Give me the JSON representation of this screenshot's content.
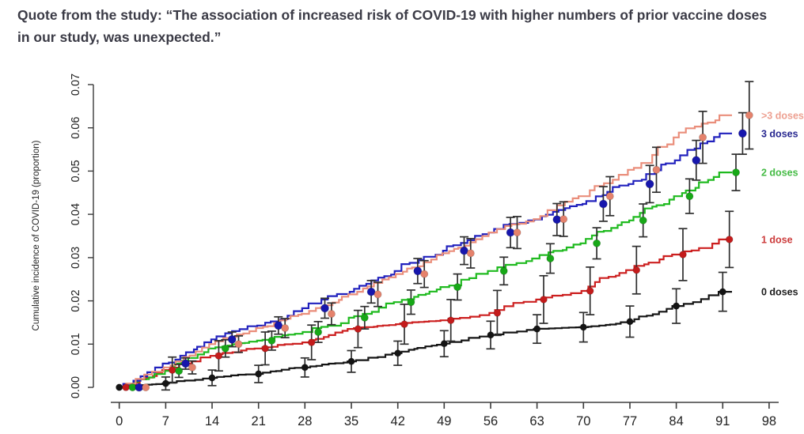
{
  "quote": {
    "text": "Quote from the study: “The association of increased risk of COVID-19 with higher numbers of prior vaccine doses in our study, was unexpected.”"
  },
  "chart_data": {
    "type": "line",
    "subtype": "step-cumulative-incidence-with-error-bars",
    "title": "",
    "xlabel": "",
    "ylabel": "Cumulative incidence of COVID-19 (proportion)",
    "xlim": [
      0,
      98
    ],
    "ylim": [
      0,
      0.07
    ],
    "x_ticks": [
      0,
      7,
      14,
      21,
      28,
      35,
      42,
      49,
      56,
      63,
      70,
      77,
      84,
      91,
      98
    ],
    "y_ticks": [
      "0.00",
      "0.01",
      "0.02",
      "0.03",
      "0.04",
      "0.05",
      "0.06",
      "0.07"
    ],
    "grid": false,
    "legend_position": "right, aligned to final value of each curve",
    "point_days": [
      0,
      7,
      14,
      21,
      28,
      35,
      42,
      49,
      56,
      63,
      70,
      77,
      84,
      91
    ],
    "series": [
      {
        "name": "0 doses",
        "label": "0 doses",
        "color": "#141414",
        "dot_color": "#141414",
        "legend_color": "#1a1a1a",
        "offset_days": 0,
        "values": [
          0,
          0.0009,
          0.0022,
          0.0031,
          0.0046,
          0.006,
          0.0079,
          0.0101,
          0.0121,
          0.0135,
          0.0139,
          0.0152,
          0.0188,
          0.0221
        ],
        "ci": [
          0,
          0.0015,
          0.0018,
          0.002,
          0.0022,
          0.0025,
          0.0028,
          0.003,
          0.0032,
          0.0033,
          0.0034,
          0.0036,
          0.004,
          0.0045
        ]
      },
      {
        "name": "1 dose",
        "label": "1 dose",
        "color": "#cc1f1f",
        "dot_color": "#c41b1b",
        "legend_color": "#cc3b3b",
        "offset_days": 1,
        "values": [
          0,
          0.004,
          0.0073,
          0.009,
          0.0104,
          0.0135,
          0.0146,
          0.0155,
          0.0172,
          0.0203,
          0.0223,
          0.0271,
          0.0307,
          0.0342
        ],
        "ci": [
          0,
          0.003,
          0.0035,
          0.0038,
          0.004,
          0.0043,
          0.0046,
          0.0048,
          0.0052,
          0.0055,
          0.0055,
          0.0055,
          0.006,
          0.0065
        ]
      },
      {
        "name": "2 doses",
        "label": "2 doses",
        "color": "#1fba1f",
        "dot_color": "#17a817",
        "legend_color": "#44bb44",
        "offset_days": 2,
        "values": [
          0,
          0.0038,
          0.009,
          0.0108,
          0.0128,
          0.0161,
          0.0197,
          0.0232,
          0.0269,
          0.0298,
          0.0333,
          0.0386,
          0.0442,
          0.0497
        ],
        "ci": [
          0,
          0.0015,
          0.002,
          0.0022,
          0.0024,
          0.0026,
          0.0028,
          0.003,
          0.0032,
          0.0034,
          0.0036,
          0.0038,
          0.004,
          0.0042
        ]
      },
      {
        "name": "3 doses",
        "label": "3 doses",
        "color": "#2121bd",
        "dot_color": "#1616ad",
        "legend_color": "#26268f",
        "offset_days": 3,
        "values": [
          0,
          0.0055,
          0.0111,
          0.0143,
          0.0183,
          0.0221,
          0.0269,
          0.0316,
          0.0358,
          0.0388,
          0.0424,
          0.047,
          0.0525,
          0.0587
        ],
        "ci": [
          0,
          0.0013,
          0.0017,
          0.002,
          0.0023,
          0.0026,
          0.0029,
          0.0032,
          0.0035,
          0.0037,
          0.004,
          0.0043,
          0.0046,
          0.0048
        ]
      },
      {
        "name": ">3 doses",
        "label": ">3 doses",
        "color": "#ea8e7b",
        "dot_color": "#e5826c",
        "legend_color": "#eda091",
        "offset_days": 4,
        "values": [
          0,
          0.0046,
          0.01,
          0.0137,
          0.017,
          0.0215,
          0.0262,
          0.031,
          0.0358,
          0.0389,
          0.0442,
          0.0503,
          0.0578,
          0.0629
        ],
        "ci": [
          0,
          0.0015,
          0.0019,
          0.0022,
          0.0025,
          0.0028,
          0.0031,
          0.0034,
          0.0037,
          0.004,
          0.0045,
          0.0052,
          0.006,
          0.0078
        ]
      }
    ],
    "error_bar_color": "#2e2e2e"
  },
  "axis": {
    "line_color": "#6e6e6e",
    "tick_color": "#3a3a3a",
    "tick_label_color": "#222222"
  }
}
